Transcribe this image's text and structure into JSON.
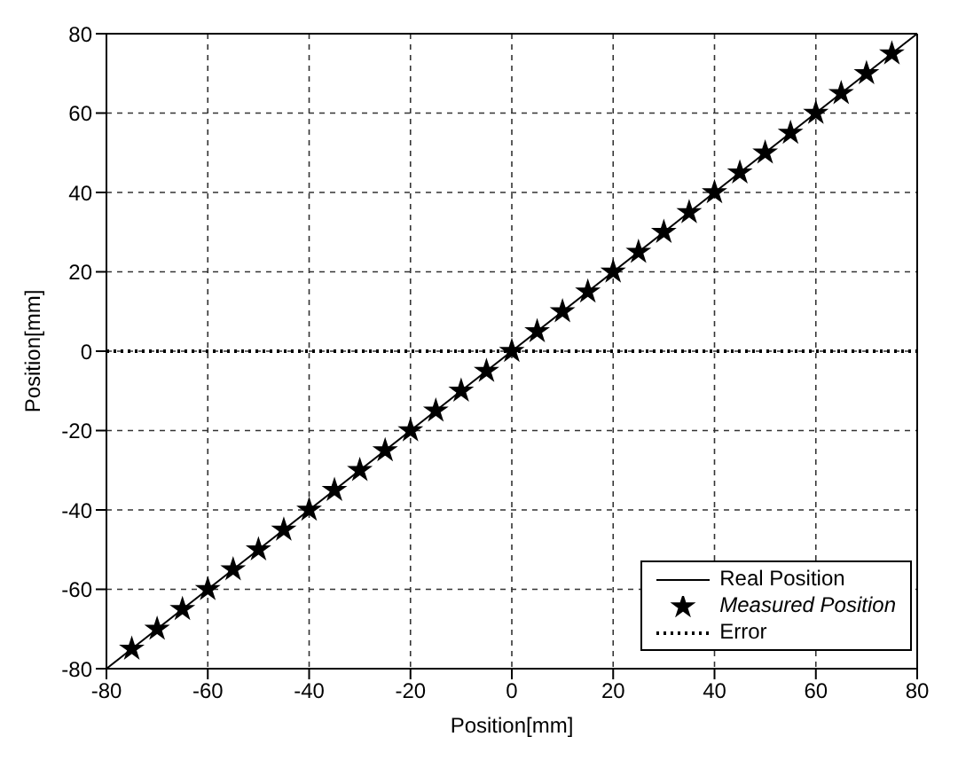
{
  "chart_data": {
    "type": "line",
    "xlabel": "Position[mm]",
    "ylabel": "Position[mm]",
    "xlim": [
      -80,
      80
    ],
    "ylim": [
      -80,
      80
    ],
    "xticks": [
      -80,
      -60,
      -40,
      -20,
      0,
      20,
      40,
      60,
      80
    ],
    "yticks": [
      -80,
      -60,
      -40,
      -20,
      0,
      20,
      40,
      60,
      80
    ],
    "grid": true,
    "legend": "bottom right",
    "series": [
      {
        "name": "Real Position",
        "type": "line",
        "color": "#000000",
        "line_style": "solid",
        "marker": "none",
        "x": [
          -80,
          80
        ],
        "values": [
          -80,
          80
        ]
      },
      {
        "name": "Measured Position",
        "type": "scatter",
        "color": "#000000",
        "marker": "star",
        "x": [
          -75,
          -70,
          -65,
          -60,
          -55,
          -50,
          -45,
          -40,
          -35,
          -30,
          -25,
          -20,
          -15,
          -10,
          -5,
          0,
          5,
          10,
          15,
          20,
          25,
          30,
          35,
          40,
          45,
          50,
          55,
          60,
          65,
          70,
          75
        ],
        "values": [
          -75,
          -70,
          -65,
          -60,
          -55,
          -50,
          -45,
          -40,
          -35,
          -30,
          -25,
          -20,
          -15,
          -10,
          -5,
          0,
          5,
          10,
          15,
          20,
          25,
          30,
          35,
          40,
          45,
          50,
          55,
          60,
          65,
          70,
          75
        ]
      },
      {
        "name": "Error",
        "type": "line",
        "color": "#000000",
        "line_style": "dotted",
        "marker": "none",
        "x": [
          -80,
          80
        ],
        "values": [
          0,
          0
        ]
      }
    ]
  }
}
